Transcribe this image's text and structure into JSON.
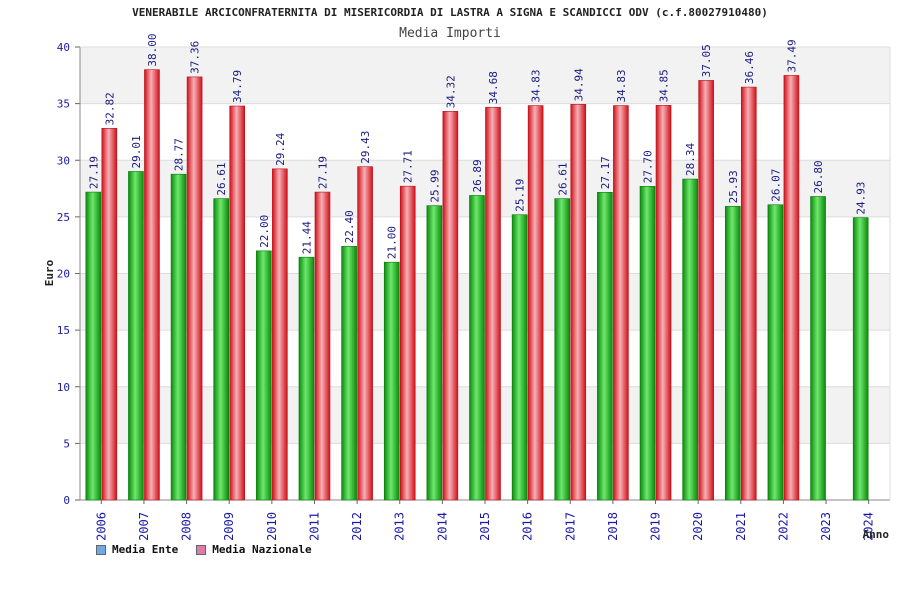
{
  "chart_data": {
    "type": "bar",
    "title": "VENERABILE ARCICONFRATERNITA DI MISERICORDIA DI LASTRA A SIGNA E SCANDICCI ODV (c.f.80027910480)",
    "subtitle": "Media Importi",
    "xlabel": "Anno",
    "ylabel": "Euro",
    "ylim": [
      0,
      40
    ],
    "yticks": [
      0,
      5,
      10,
      15,
      20,
      25,
      30,
      35,
      40
    ],
    "grid": true,
    "legend_position": "bottom-left",
    "categories": [
      "2006",
      "2007",
      "2008",
      "2009",
      "2010",
      "2011",
      "2012",
      "2013",
      "2014",
      "2015",
      "2016",
      "2017",
      "2018",
      "2019",
      "2020",
      "2021",
      "2022",
      "2023",
      "2024"
    ],
    "series": [
      {
        "name": "Media Ente",
        "color": "#1db51d",
        "legend_color": "#6fa8e8",
        "values": [
          27.19,
          29.01,
          28.77,
          26.61,
          22.0,
          21.44,
          22.4,
          21.0,
          25.99,
          26.89,
          25.19,
          26.61,
          27.17,
          27.7,
          28.34,
          25.93,
          26.07,
          26.8,
          24.93
        ],
        "labels": [
          "27.19",
          "29.01",
          "28.77",
          "26.61",
          "22.00",
          "21.44",
          "22.40",
          "21.00",
          "25.99",
          "26.89",
          "25.19",
          "26.61",
          "27.17",
          "27.70",
          "28.34",
          "25.93",
          "26.07",
          "26.80",
          "24.93"
        ]
      },
      {
        "name": "Media Nazionale",
        "color": "#e8202a",
        "legend_color": "#e07aa8",
        "values": [
          32.82,
          38.0,
          37.36,
          34.79,
          29.24,
          27.19,
          29.43,
          27.71,
          34.32,
          34.68,
          34.83,
          34.94,
          34.83,
          34.85,
          37.05,
          36.46,
          37.49,
          null,
          null
        ],
        "labels": [
          "32.82",
          "38.00",
          "37.36",
          "34.79",
          "29.24",
          "27.19",
          "29.43",
          "27.71",
          "34.32",
          "34.68",
          "34.83",
          "34.94",
          "34.83",
          "34.85",
          "37.05",
          "36.46",
          "37.49",
          "",
          ""
        ]
      }
    ]
  }
}
